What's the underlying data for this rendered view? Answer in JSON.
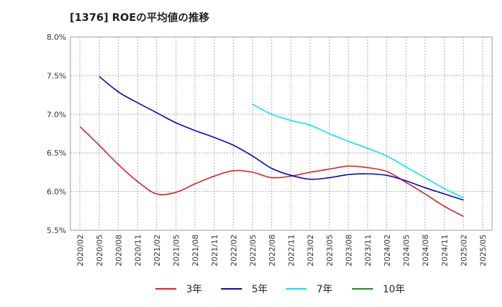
{
  "title": "[1376]  ROEの平均値の推移",
  "chart_data": {
    "type": "line",
    "title": "[1376]  ROEの平均値の推移",
    "xlabel": "",
    "ylabel": "",
    "ylim": [
      5.5,
      8.0
    ],
    "yticks": [
      "8.0%",
      "7.5%",
      "7.0%",
      "6.5%",
      "6.0%",
      "5.5%"
    ],
    "ytick_values": [
      8.0,
      7.5,
      7.0,
      6.5,
      6.0,
      5.5
    ],
    "x": [
      "2020/02",
      "2020/05",
      "2020/08",
      "2020/11",
      "2021/02",
      "2021/05",
      "2021/08",
      "2021/11",
      "2022/02",
      "2022/05",
      "2022/08",
      "2022/11",
      "2023/02",
      "2023/05",
      "2023/08",
      "2023/11",
      "2024/02",
      "2024/05",
      "2024/08",
      "2024/11",
      "2025/02",
      "2025/05"
    ],
    "grid": true,
    "legend_position": "bottom",
    "series": [
      {
        "name": "3年",
        "color": "#e31a1c",
        "values": [
          6.84,
          6.6,
          6.35,
          6.13,
          5.97,
          5.99,
          6.1,
          6.2,
          6.27,
          6.25,
          6.18,
          6.2,
          6.25,
          6.29,
          6.33,
          6.31,
          6.26,
          6.12,
          5.97,
          5.81,
          5.68,
          null
        ]
      },
      {
        "name": "5年",
        "color": "#0000cc",
        "values": [
          null,
          7.49,
          7.29,
          7.15,
          7.02,
          6.89,
          6.79,
          6.7,
          6.6,
          6.46,
          6.3,
          6.21,
          6.16,
          6.18,
          6.22,
          6.23,
          6.21,
          6.14,
          6.05,
          5.97,
          5.89,
          null
        ]
      },
      {
        "name": "7年",
        "color": "#00e5ee",
        "values": [
          null,
          null,
          null,
          null,
          null,
          null,
          null,
          null,
          null,
          7.13,
          7.0,
          6.92,
          6.86,
          6.75,
          6.65,
          6.56,
          6.46,
          6.32,
          6.18,
          6.04,
          5.92,
          null
        ]
      },
      {
        "name": "10年",
        "color": "#1a8a1a",
        "values": [
          null,
          null,
          null,
          null,
          null,
          null,
          null,
          null,
          null,
          null,
          null,
          null,
          null,
          null,
          null,
          null,
          null,
          null,
          null,
          null,
          null,
          null
        ]
      }
    ]
  }
}
